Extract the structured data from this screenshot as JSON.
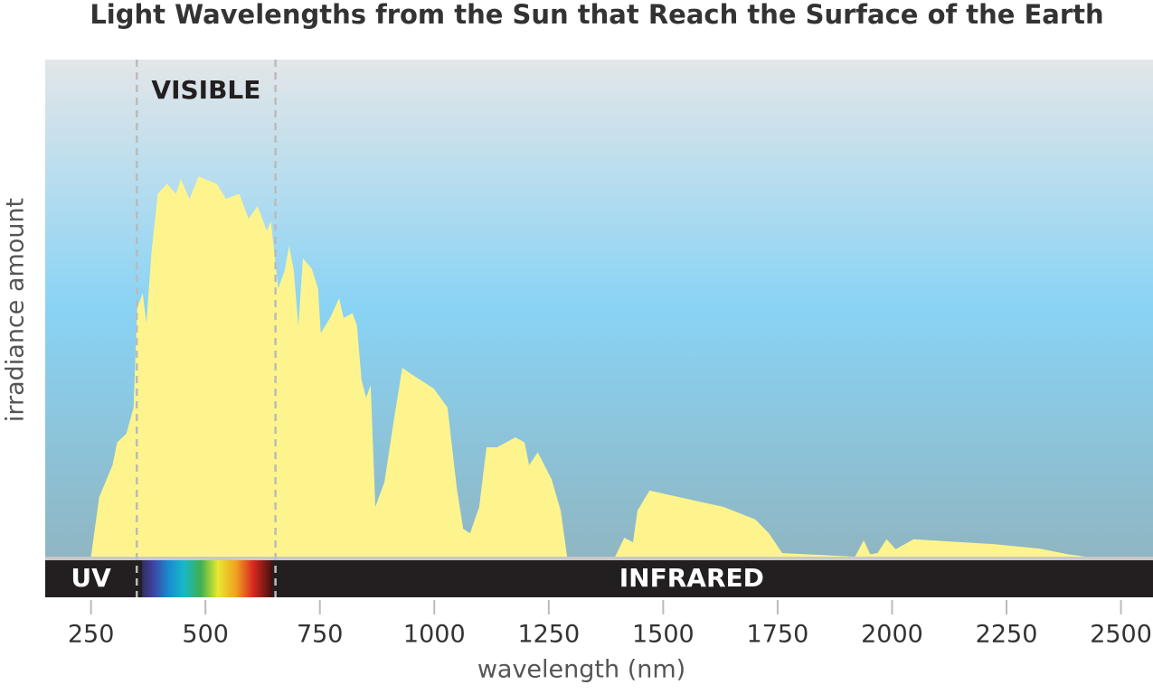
{
  "chart_data": {
    "type": "area",
    "title": "Light Wavelengths from the Sun that Reach the Surface of the Earth",
    "x_label": "wavelength (nm)",
    "y_label": "irradiance amount",
    "color": "#fdf48e",
    "xlim": [
      150,
      2570
    ],
    "ylim": [
      0,
      100
    ],
    "xticks": [
      250,
      500,
      750,
      1000,
      1250,
      1500,
      1750,
      2000,
      2250,
      2500
    ],
    "regions": [
      {
        "name": "UV",
        "start": 150,
        "end": 350
      },
      {
        "name": "VISIBLE",
        "start": 350,
        "end": 653
      },
      {
        "name": "INFRARED",
        "start": 653,
        "end": 2570
      }
    ],
    "x": [
      250,
      268,
      297,
      307,
      327,
      343,
      351,
      363,
      371,
      382,
      396,
      416,
      436,
      446,
      465,
      485,
      525,
      545,
      574,
      594,
      614,
      634,
      643,
      653,
      659,
      673,
      683,
      693,
      703,
      713,
      732,
      746,
      752,
      772,
      792,
      802,
      821,
      831,
      841,
      851,
      861,
      871,
      891,
      910,
      930,
      950,
      999,
      1029,
      1049,
      1063,
      1078,
      1098,
      1114,
      1137,
      1177,
      1197,
      1207,
      1226,
      1256,
      1276,
      1290,
      1395,
      1415,
      1434,
      1444,
      1470,
      1632,
      1701,
      1731,
      1760,
      1919,
      1938,
      1952,
      1968,
      1988,
      2008,
      2047,
      2225,
      2324,
      2383,
      2423
    ],
    "values": [
      0,
      12,
      18.4,
      23,
      24.7,
      30,
      50,
      53,
      47,
      61,
      73,
      75,
      73,
      76,
      72,
      76.5,
      75,
      72,
      73,
      68,
      70.5,
      65.6,
      67.5,
      59,
      54,
      57.5,
      62.5,
      57.5,
      46.5,
      60,
      58,
      54,
      45,
      48,
      52,
      48,
      49,
      46.5,
      35.6,
      32,
      34.5,
      10,
      15,
      26.5,
      38,
      36.7,
      33.8,
      30,
      13.8,
      5.6,
      4.7,
      10,
      22,
      22,
      24,
      23,
      18.4,
      21,
      15.6,
      9.3,
      0,
      0,
      3.8,
      2.9,
      9.3,
      13.3,
      10,
      7.5,
      4.7,
      0.7,
      0,
      3.3,
      0.5,
      0.7,
      3.5,
      1.5,
      3.5,
      2.5,
      1.6,
      0.5,
      0
    ]
  }
}
